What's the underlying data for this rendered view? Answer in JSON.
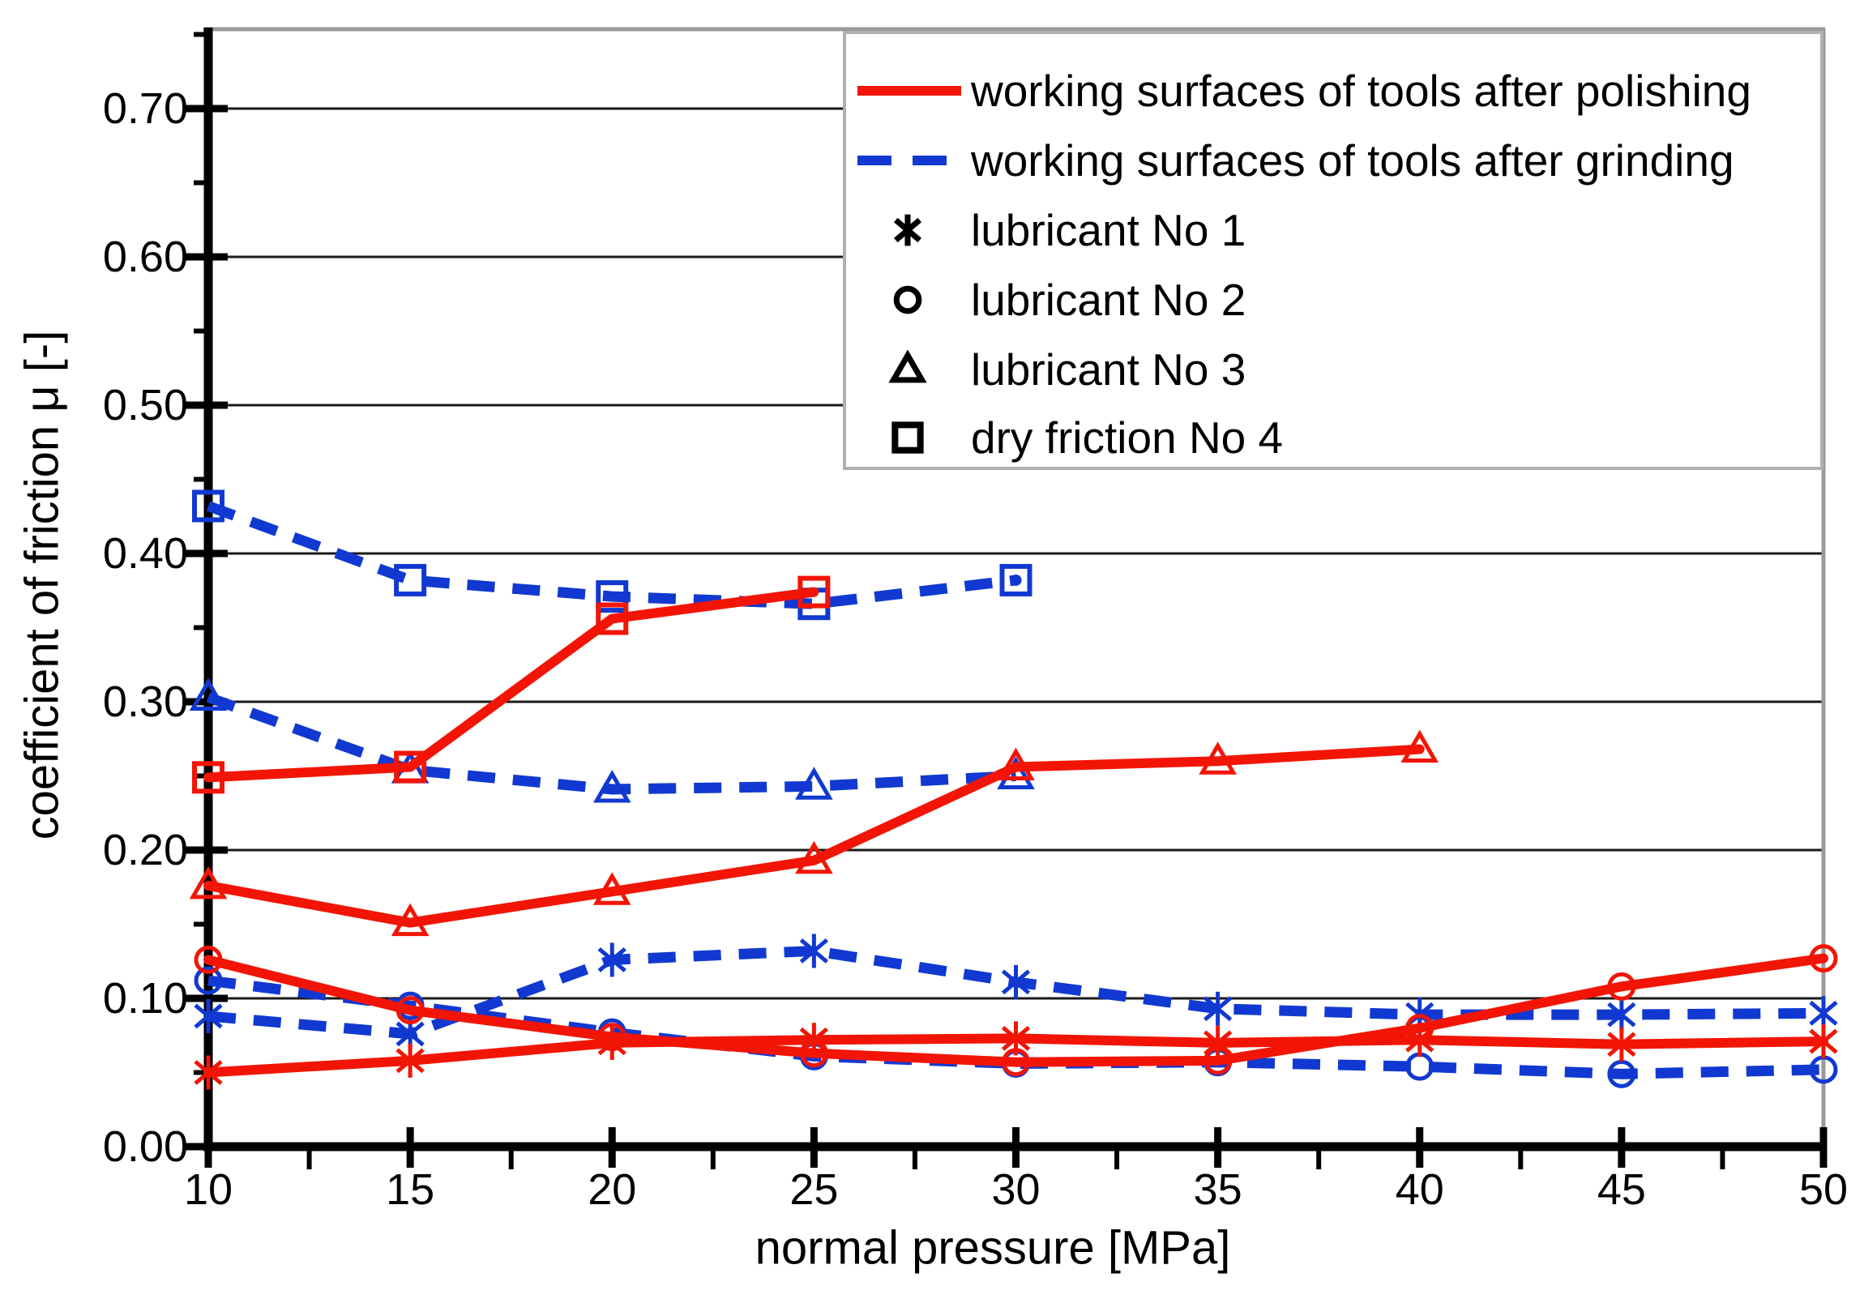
{
  "chart_data": {
    "type": "line",
    "title": "",
    "xlabel": "normal pressure [MPa]",
    "ylabel": "coefficient of friction μ [-]",
    "xlim": [
      10,
      50
    ],
    "ylim": [
      0.0,
      0.755
    ],
    "x_ticks": [
      10,
      15,
      20,
      25,
      30,
      35,
      40,
      45,
      50
    ],
    "x_tick_labels": [
      "10",
      "15",
      "20",
      "25",
      "30",
      "35",
      "40",
      "45",
      "50"
    ],
    "x_minor_ticks": [
      12.5,
      15.0,
      17.5,
      22.5,
      27.5,
      32.5,
      37.5,
      42.5,
      47.5
    ],
    "y_ticks": [
      0.0,
      0.1,
      0.2,
      0.3,
      0.4,
      0.5,
      0.6,
      0.7
    ],
    "y_tick_labels": [
      "0.00",
      "0.10",
      "0.20",
      "0.30",
      "0.40",
      "0.50",
      "0.60",
      "0.70"
    ],
    "y_minor_ticks": [
      0.05,
      0.15,
      0.25,
      0.35,
      0.45,
      0.55,
      0.65,
      0.75
    ],
    "grid": "horizontal-major-only",
    "legend_position": "top-right",
    "colors": {
      "polishing_red": "#f21505",
      "grinding_blue": "#1139d1",
      "gridline": "#1a1a1a",
      "axis": "#000000",
      "frame_gray": "#9a9a9a",
      "legend_border": "#b0b0b0",
      "legend_marker": "#000000",
      "background": "#ffffff"
    },
    "legend": [
      {
        "type": "line",
        "style": "solid",
        "color_key": "polishing_red",
        "label": "working surfaces of tools after polishing"
      },
      {
        "type": "line",
        "style": "dashed",
        "color_key": "grinding_blue",
        "label": "working surfaces of tools after grinding"
      },
      {
        "type": "marker",
        "marker": "asterisk",
        "label": "lubricant No 1"
      },
      {
        "type": "marker",
        "marker": "circle",
        "label": "lubricant No 2"
      },
      {
        "type": "marker",
        "marker": "triangle",
        "label": "lubricant No 3"
      },
      {
        "type": "marker",
        "marker": "square",
        "label": "dry friction No 4"
      }
    ],
    "series": [
      {
        "name": "grinding dry friction No 4",
        "surface": "grinding",
        "lubricant": "dry friction No 4",
        "marker": "square",
        "line": "dashed",
        "color_key": "grinding_blue",
        "x": [
          10,
          15,
          20,
          25,
          30
        ],
        "y": [
          0.432,
          0.382,
          0.371,
          0.366,
          0.382
        ],
        "end_dot": true
      },
      {
        "name": "grinding lubricant No 3",
        "surface": "grinding",
        "lubricant": "lubricant No 3",
        "marker": "triangle",
        "line": "dashed",
        "color_key": "grinding_blue",
        "x": [
          10,
          15,
          20,
          25,
          30
        ],
        "y": [
          0.303,
          0.254,
          0.241,
          0.243,
          0.25
        ],
        "end_dot": false
      },
      {
        "name": "grinding lubricant No 2",
        "surface": "grinding",
        "lubricant": "lubricant No 2",
        "marker": "circle",
        "line": "dashed",
        "color_key": "grinding_blue",
        "x": [
          10,
          15,
          20,
          25,
          30,
          35,
          40,
          45,
          50
        ],
        "y": [
          0.112,
          0.095,
          0.077,
          0.061,
          0.056,
          0.057,
          0.054,
          0.049,
          0.052
        ],
        "end_dot": false
      },
      {
        "name": "grinding lubricant No 1",
        "surface": "grinding",
        "lubricant": "lubricant No 1",
        "marker": "asterisk",
        "line": "dashed",
        "color_key": "grinding_blue",
        "x": [
          10,
          15,
          20,
          25,
          30,
          35,
          40,
          45,
          50
        ],
        "y": [
          0.088,
          0.076,
          0.126,
          0.132,
          0.111,
          0.093,
          0.089,
          0.089,
          0.09
        ],
        "end_dot": false
      },
      {
        "name": "polishing dry friction No 4",
        "surface": "polishing",
        "lubricant": "dry friction No 4",
        "marker": "square",
        "line": "solid",
        "color_key": "polishing_red",
        "x": [
          10,
          15,
          20,
          25
        ],
        "y": [
          0.249,
          0.256,
          0.356,
          0.374
        ],
        "end_dot": false
      },
      {
        "name": "polishing lubricant No 3",
        "surface": "polishing",
        "lubricant": "lubricant No 3",
        "marker": "triangle",
        "line": "solid",
        "color_key": "polishing_red",
        "x": [
          10,
          15,
          20,
          25,
          30,
          35,
          40
        ],
        "y": [
          0.176,
          0.151,
          0.172,
          0.193,
          0.256,
          0.26,
          0.268
        ],
        "end_dot": false
      },
      {
        "name": "polishing lubricant No 2",
        "surface": "polishing",
        "lubricant": "lubricant No 2",
        "marker": "circle",
        "line": "solid",
        "color_key": "polishing_red",
        "x": [
          10,
          15,
          20,
          25,
          30,
          35,
          40,
          45,
          50
        ],
        "y": [
          0.126,
          0.092,
          0.074,
          0.063,
          0.057,
          0.058,
          0.08,
          0.108,
          0.127
        ],
        "end_dot": false
      },
      {
        "name": "polishing lubricant No 1",
        "surface": "polishing",
        "lubricant": "lubricant No 1",
        "marker": "asterisk",
        "line": "solid",
        "color_key": "polishing_red",
        "x": [
          10,
          15,
          20,
          25,
          30,
          35,
          40,
          45,
          50
        ],
        "y": [
          0.05,
          0.058,
          0.07,
          0.072,
          0.073,
          0.07,
          0.072,
          0.069,
          0.071
        ],
        "end_dot": false
      }
    ]
  }
}
